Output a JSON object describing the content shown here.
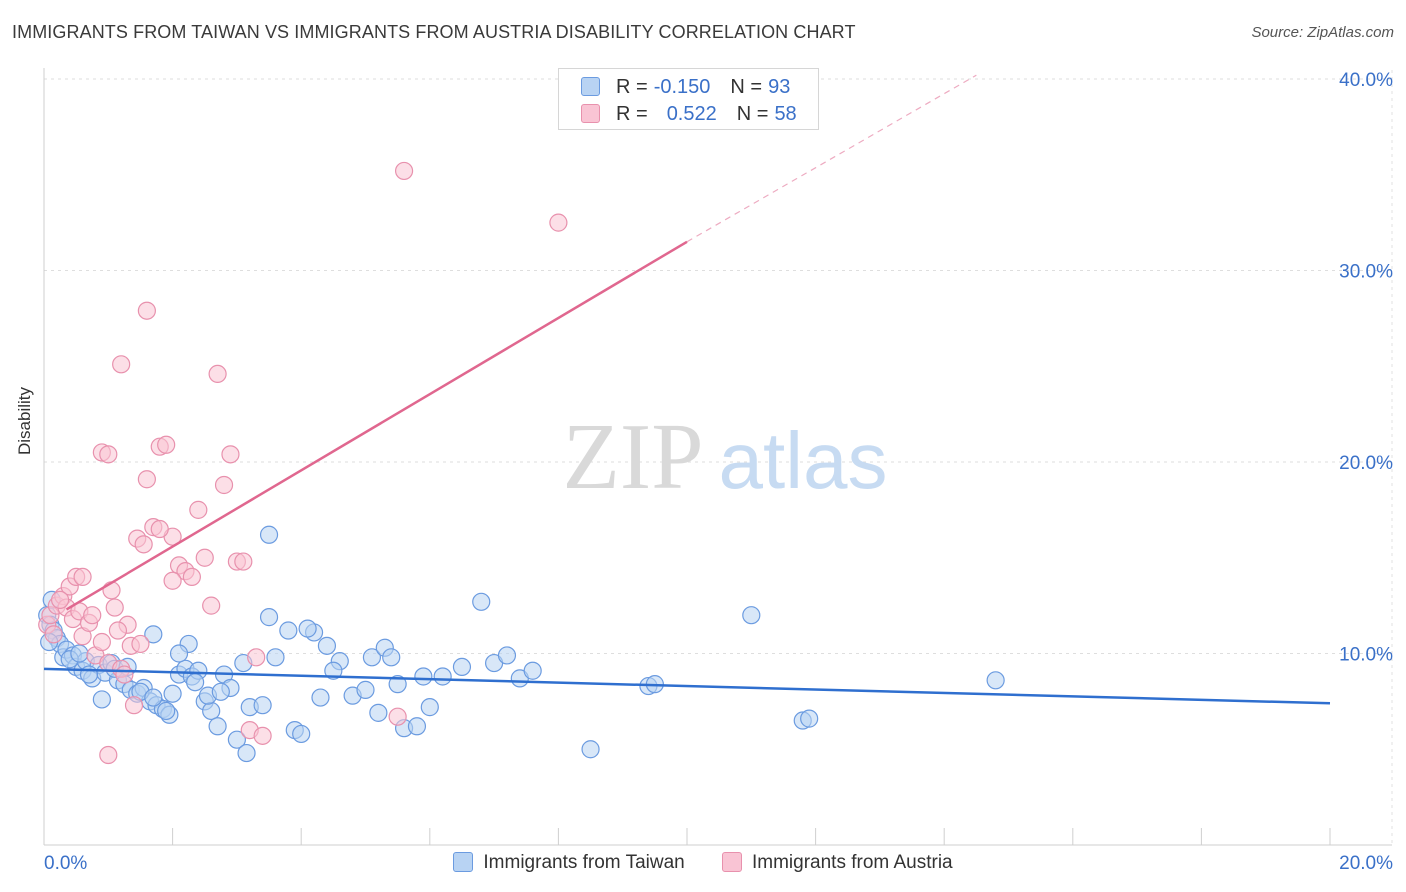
{
  "header": {
    "title": "IMMIGRANTS FROM TAIWAN VS IMMIGRANTS FROM AUSTRIA DISABILITY CORRELATION CHART",
    "source": "Source: ZipAtlas.com"
  },
  "watermark": {
    "zip": "ZIP",
    "atlas": "atlas"
  },
  "legend": {
    "taiwan": {
      "r_label": "R =",
      "r_value": "-0.150",
      "n_label": "N =",
      "n_value": "93"
    },
    "austria": {
      "r_label": "R =",
      "r_value": "0.522",
      "n_label": "N =",
      "n_value": "58"
    }
  },
  "colors": {
    "taiwan_fill": "#b8d3f3",
    "taiwan_stroke": "#6b9be0",
    "taiwan_line": "#2f6fcf",
    "austria_fill": "#f9c4d4",
    "austria_stroke": "#e891ad",
    "austria_line": "#e0678f",
    "tick_text": "#3a70c8"
  },
  "chart_data": {
    "type": "scatter",
    "title": "IMMIGRANTS FROM TAIWAN VS IMMIGRANTS FROM AUSTRIA DISABILITY CORRELATION CHART",
    "xlabel": "",
    "ylabel": "Disability",
    "xlim": [
      0,
      20
    ],
    "ylim": [
      0,
      40
    ],
    "x_tick_labels": [
      {
        "value": 0,
        "label": "0.0%"
      },
      {
        "value": 20,
        "label": "20.0%"
      }
    ],
    "y_tick_labels": [
      {
        "value": 10,
        "label": "10.0%"
      },
      {
        "value": 20,
        "label": "20.0%"
      },
      {
        "value": 30,
        "label": "30.0%"
      },
      {
        "value": 40,
        "label": "40.0%"
      }
    ],
    "grid": true,
    "legend_position": "top-center",
    "series": [
      {
        "name": "Immigrants from Taiwan",
        "r": -0.15,
        "n": 93,
        "trend": {
          "x": [
            0,
            20
          ],
          "y": [
            9.2,
            7.4
          ]
        },
        "points": [
          [
            0.05,
            12.0
          ],
          [
            0.1,
            11.5
          ],
          [
            0.15,
            11.2
          ],
          [
            0.2,
            10.8
          ],
          [
            0.25,
            10.5
          ],
          [
            0.3,
            9.8
          ],
          [
            0.35,
            10.2
          ],
          [
            0.45,
            9.9
          ],
          [
            0.5,
            9.3
          ],
          [
            0.6,
            9.1
          ],
          [
            0.65,
            9.6
          ],
          [
            0.75,
            8.7
          ],
          [
            0.85,
            9.4
          ],
          [
            0.95,
            9.0
          ],
          [
            1.05,
            9.5
          ],
          [
            1.15,
            8.6
          ],
          [
            1.25,
            8.4
          ],
          [
            1.35,
            8.1
          ],
          [
            1.45,
            7.9
          ],
          [
            1.55,
            8.2
          ],
          [
            1.65,
            7.5
          ],
          [
            1.75,
            7.3
          ],
          [
            1.85,
            7.1
          ],
          [
            1.95,
            6.8
          ],
          [
            2.1,
            8.9
          ],
          [
            2.2,
            9.2
          ],
          [
            2.3,
            8.8
          ],
          [
            2.4,
            9.1
          ],
          [
            2.5,
            7.5
          ],
          [
            2.6,
            7.0
          ],
          [
            2.7,
            6.2
          ],
          [
            2.8,
            8.9
          ],
          [
            2.9,
            8.2
          ],
          [
            3.0,
            5.5
          ],
          [
            3.1,
            9.5
          ],
          [
            3.2,
            7.2
          ],
          [
            3.5,
            11.9
          ],
          [
            3.6,
            9.8
          ],
          [
            3.8,
            11.2
          ],
          [
            3.9,
            6.0
          ],
          [
            4.0,
            5.8
          ],
          [
            4.2,
            11.1
          ],
          [
            4.4,
            10.4
          ],
          [
            4.6,
            9.6
          ],
          [
            4.8,
            7.8
          ],
          [
            5.0,
            8.1
          ],
          [
            5.1,
            9.8
          ],
          [
            5.3,
            10.3
          ],
          [
            5.5,
            8.4
          ],
          [
            5.6,
            6.1
          ],
          [
            5.8,
            6.2
          ],
          [
            6.0,
            7.2
          ],
          [
            6.2,
            8.8
          ],
          [
            7.0,
            9.5
          ],
          [
            7.2,
            9.9
          ],
          [
            7.4,
            8.7
          ],
          [
            8.5,
            5.0
          ],
          [
            9.4,
            8.3
          ],
          [
            9.5,
            8.4
          ],
          [
            11.8,
            6.5
          ],
          [
            11.9,
            6.6
          ],
          [
            14.8,
            8.6
          ],
          [
            0.08,
            10.6
          ],
          [
            0.4,
            9.7
          ],
          [
            0.55,
            10.0
          ],
          [
            0.7,
            8.9
          ],
          [
            0.9,
            7.6
          ],
          [
            1.1,
            9.2
          ],
          [
            1.3,
            9.3
          ],
          [
            1.5,
            8.0
          ],
          [
            1.7,
            7.7
          ],
          [
            1.9,
            7.0
          ],
          [
            2.0,
            7.9
          ],
          [
            2.25,
            10.5
          ],
          [
            2.35,
            8.5
          ],
          [
            2.55,
            7.8
          ],
          [
            2.75,
            8.0
          ],
          [
            3.15,
            4.8
          ],
          [
            3.4,
            7.3
          ],
          [
            4.1,
            11.3
          ],
          [
            4.3,
            7.7
          ],
          [
            4.5,
            9.1
          ],
          [
            5.2,
            6.9
          ],
          [
            5.4,
            9.8
          ],
          [
            5.9,
            8.8
          ],
          [
            6.5,
            9.3
          ],
          [
            7.6,
            9.1
          ],
          [
            11.0,
            12.0
          ],
          [
            1.7,
            11.0
          ],
          [
            2.1,
            10.0
          ],
          [
            0.12,
            12.8
          ],
          [
            3.5,
            16.2
          ],
          [
            6.8,
            12.7
          ]
        ]
      },
      {
        "name": "Immigrants from Austria",
        "r": 0.522,
        "n": 58,
        "trend": {
          "x": [
            0.35,
            10
          ],
          "y": [
            12.3,
            31.5
          ]
        },
        "trend_dashed": {
          "x": [
            10,
            14.5
          ],
          "y": [
            31.5,
            40.2
          ]
        },
        "points": [
          [
            0.05,
            11.5
          ],
          [
            0.1,
            12.0
          ],
          [
            0.15,
            11.0
          ],
          [
            0.2,
            12.5
          ],
          [
            0.3,
            13.0
          ],
          [
            0.35,
            12.4
          ],
          [
            0.4,
            13.5
          ],
          [
            0.45,
            11.8
          ],
          [
            0.5,
            14.0
          ],
          [
            0.55,
            12.2
          ],
          [
            0.6,
            10.9
          ],
          [
            0.7,
            11.6
          ],
          [
            0.8,
            9.9
          ],
          [
            0.9,
            10.6
          ],
          [
            1.0,
            9.5
          ],
          [
            1.05,
            13.3
          ],
          [
            1.1,
            12.4
          ],
          [
            1.2,
            9.2
          ],
          [
            1.25,
            8.9
          ],
          [
            1.3,
            11.5
          ],
          [
            1.35,
            10.4
          ],
          [
            1.45,
            16.0
          ],
          [
            1.55,
            15.7
          ],
          [
            1.6,
            19.1
          ],
          [
            1.7,
            16.6
          ],
          [
            1.8,
            20.8
          ],
          [
            1.9,
            20.9
          ],
          [
            2.0,
            16.1
          ],
          [
            2.1,
            14.6
          ],
          [
            2.2,
            14.3
          ],
          [
            2.3,
            14.0
          ],
          [
            2.4,
            17.5
          ],
          [
            2.5,
            15.0
          ],
          [
            2.6,
            12.5
          ],
          [
            2.7,
            24.6
          ],
          [
            2.8,
            18.8
          ],
          [
            2.9,
            20.4
          ],
          [
            3.0,
            14.8
          ],
          [
            3.1,
            14.8
          ],
          [
            3.2,
            6.0
          ],
          [
            3.3,
            9.8
          ],
          [
            3.4,
            5.7
          ],
          [
            0.9,
            20.5
          ],
          [
            1.0,
            20.4
          ],
          [
            1.2,
            25.1
          ],
          [
            1.6,
            27.9
          ],
          [
            1.8,
            16.5
          ],
          [
            2.0,
            13.8
          ],
          [
            0.6,
            14.0
          ],
          [
            1.0,
            4.7
          ],
          [
            1.4,
            7.3
          ],
          [
            1.5,
            10.5
          ],
          [
            5.6,
            35.2
          ],
          [
            8.0,
            32.5
          ],
          [
            5.5,
            6.7
          ],
          [
            0.25,
            12.8
          ],
          [
            0.75,
            12.0
          ],
          [
            1.15,
            11.2
          ]
        ]
      }
    ]
  },
  "bottom_legend": {
    "taiwan": "Immigrants from Taiwan",
    "austria": "Immigrants from Austria"
  }
}
